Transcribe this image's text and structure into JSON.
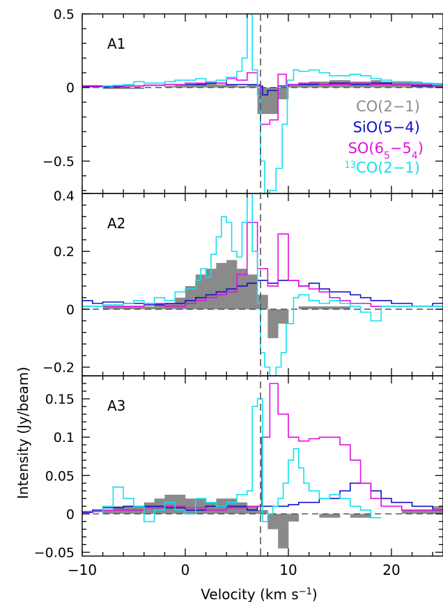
{
  "chart_data": {
    "type": "step",
    "xlabel": "Velocity (km s⁻¹)",
    "xlabel_parts": {
      "main": "Velocity (km s",
      "sup": "−1",
      "end": ")"
    },
    "ylabel": "Intensity (Jy/beam)",
    "xlim": [
      -10,
      25
    ],
    "x_ticks": [
      -10,
      0,
      10,
      20
    ],
    "x_tick_labels": [
      "−10",
      "0",
      "10",
      "20"
    ],
    "reference_velocity": 7.3,
    "colors": {
      "co": "#8a8a8a",
      "sio": "#1010c8",
      "so": "#e010e0",
      "c13o": "#10e0f0",
      "baseline": "#555555",
      "axes": "#000000"
    },
    "legend": {
      "placement": "right, top panel",
      "entries": [
        {
          "key": "co",
          "text": "CO(2−1)"
        },
        {
          "key": "sio",
          "text": "SiO(5−4)"
        },
        {
          "key": "so",
          "parts": [
            [
              "SO(6",
              0
            ],
            [
              "5",
              -1
            ],
            [
              "−5",
              0
            ],
            [
              "4",
              -1
            ],
            [
              ")",
              0
            ]
          ]
        },
        {
          "key": "c13o",
          "parts": [
            [
              "13",
              1
            ],
            [
              "CO(2−1)",
              0
            ]
          ]
        }
      ]
    },
    "panels": [
      {
        "name": "A1",
        "ylim": [
          -0.72,
          0.5
        ],
        "y_ticks": [
          0.5,
          0,
          -0.5
        ],
        "y_tick_labels": [
          "0.5",
          "0",
          "−0.5"
        ],
        "series": {
          "co": {
            "edges": [
              -8,
              -7,
              -6,
              -5,
              -4,
              -3,
              -2,
              -1,
              0,
              1,
              2,
              3,
              4,
              5,
              6,
              7,
              8,
              9,
              10,
              11,
              12,
              13,
              14,
              15,
              16,
              17,
              18,
              19,
              20,
              21,
              22,
              23,
              24,
              25
            ],
            "values": [
              -0.01,
              -0.01,
              -0.01,
              -0.01,
              0,
              0,
              0.01,
              0.02,
              0.02,
              0.03,
              0.03,
              0.02,
              0.02,
              0.01,
              0.02,
              -0.18,
              -0.18,
              -0.08,
              0.02,
              0.03,
              0.04,
              0.04,
              0.05,
              0.05,
              0.04,
              0.04,
              0.05,
              0.04,
              0.04,
              0.04,
              0.04,
              0.03,
              0.03
            ]
          },
          "sio": {
            "edges": [
              -10,
              -8,
              -6,
              -4,
              -2,
              0,
              2,
              4,
              6,
              7,
              7.5,
              8,
              9,
              10,
              12,
              14,
              16,
              18,
              20,
              22,
              25
            ],
            "values": [
              0.01,
              0.005,
              0.01,
              0.015,
              0.02,
              0.02,
              0.03,
              0.02,
              0.02,
              0.01,
              -0.05,
              -0.02,
              0.01,
              0.02,
              0.02,
              0.03,
              0.02,
              0.03,
              0.02,
              0.01
            ]
          },
          "so": {
            "edges": [
              -10,
              -8,
              -6,
              -4,
              -3,
              -2,
              -1,
              0,
              1,
              2,
              3,
              4,
              5,
              6,
              7,
              7.3,
              8.2,
              9,
              9.8,
              11,
              12,
              13,
              14,
              15,
              16,
              17,
              18,
              19,
              20,
              21,
              22,
              23,
              24,
              25
            ],
            "values": [
              0.005,
              0.01,
              0.01,
              0.015,
              0.015,
              0.02,
              0.02,
              0.03,
              0.03,
              0.04,
              0.03,
              0.06,
              0.05,
              0.1,
              0.02,
              -0.25,
              -0.22,
              0.09,
              0.02,
              0.03,
              0.03,
              0.02,
              0.02,
              0.02,
              0.03,
              0.03,
              0.02,
              0.02,
              0.02,
              0.02,
              0.02,
              0.02,
              0.01
            ]
          },
          "c13o": {
            "edges": [
              -8,
              -7,
              -6,
              -5,
              -4,
              -3,
              -2,
              -1,
              0,
              1,
              2,
              3,
              4,
              5,
              5.5,
              6,
              6.5,
              7,
              7.3,
              7.7,
              8.2,
              8.8,
              9.4,
              9.9,
              10.5,
              11,
              12,
              13,
              14,
              15,
              16,
              17,
              18,
              19,
              20,
              21,
              22,
              23,
              24,
              25
            ],
            "values": [
              0.01,
              0.015,
              0.02,
              0.04,
              0.03,
              0.03,
              0.04,
              0.05,
              0.05,
              0.06,
              0.04,
              0.05,
              0.07,
              0.11,
              0.2,
              0.5,
              0.12,
              -0.05,
              -0.5,
              -0.72,
              -0.7,
              -0.55,
              -0.25,
              0.05,
              0.12,
              0.11,
              0.12,
              0.1,
              0.08,
              0.08,
              0.09,
              0.08,
              0.06,
              0.05,
              0.04,
              0.04,
              0.03,
              0.03,
              0.02
            ]
          }
        }
      },
      {
        "name": "A2",
        "ylim": [
          -0.23,
          0.4
        ],
        "y_ticks": [
          0.4,
          0.2,
          0,
          -0.2
        ],
        "y_tick_labels": [
          "0.4",
          "0.2",
          "0",
          "−0.2"
        ],
        "series": {
          "co": {
            "edges": [
              -8,
              -7,
              -6,
              -5,
              -4,
              -3,
              -2,
              -1,
              0,
              1,
              2,
              3,
              4,
              5,
              6,
              7,
              8,
              9,
              10,
              11,
              12,
              13,
              14,
              15,
              16,
              17,
              18,
              19,
              20,
              21,
              22,
              23,
              24,
              25
            ],
            "values": [
              0.01,
              0.01,
              0.01,
              0.01,
              0.01,
              0.02,
              0.02,
              0.04,
              0.08,
              0.12,
              0.14,
              0.16,
              0.17,
              0.14,
              0.12,
              0.05,
              -0.1,
              -0.05,
              0,
              0.01,
              0.01,
              0.01,
              0.01,
              0.01,
              0,
              0,
              0,
              0,
              0,
              0,
              0,
              0,
              0
            ]
          },
          "sio": {
            "edges": [
              -10,
              -9,
              -8,
              -6,
              -4,
              -2,
              0,
              1,
              2,
              3,
              4,
              5,
              6,
              7,
              8,
              9,
              10,
              11,
              12,
              13,
              14,
              15,
              16,
              17,
              18,
              19,
              20,
              21,
              22,
              23,
              24,
              25
            ],
            "values": [
              0.03,
              0.02,
              0.025,
              0.02,
              0.015,
              0.02,
              0.03,
              0.04,
              0.05,
              0.06,
              0.07,
              0.08,
              0.09,
              0.1,
              0.09,
              0.1,
              0.1,
              0.08,
              0.09,
              0.07,
              0.06,
              0.06,
              0.05,
              0.04,
              0.03,
              0.03,
              0.02,
              0.02,
              0.01,
              0.01,
              0.02
            ]
          },
          "so": {
            "edges": [
              -10,
              -8,
              -6,
              -4,
              -2,
              0,
              1,
              2,
              3,
              4,
              5,
              6,
              7,
              8,
              9,
              10,
              11,
              12,
              13,
              14,
              15,
              16,
              17,
              18,
              19,
              20,
              21,
              22,
              23,
              24,
              25
            ],
            "values": [
              0.01,
              0.01,
              0.01,
              0.02,
              0.01,
              0.02,
              0.03,
              0.04,
              0.05,
              0.06,
              0.12,
              0.3,
              0.14,
              0.08,
              0.26,
              0.1,
              0.08,
              0.07,
              0.06,
              0.04,
              0.03,
              0.02,
              0.02,
              0.01,
              0.01,
              0.01,
              0.01,
              0.01,
              0.01,
              0.01
            ]
          },
          "c13o": {
            "edges": [
              -10,
              -8,
              -6,
              -5,
              -4,
              -3,
              -2,
              -1,
              0,
              1,
              1.5,
              2,
              2.5,
              3,
              3.5,
              4,
              4.5,
              5,
              5.5,
              6,
              6.5,
              7,
              7.3,
              7.7,
              8.2,
              8.8,
              9.3,
              9.8,
              10.5,
              11,
              12,
              13,
              14,
              15,
              16,
              17,
              18,
              19,
              20,
              22,
              25
            ],
            "values": [
              0.01,
              0.015,
              0.02,
              0.03,
              0.02,
              0.04,
              0.03,
              0.06,
              0.07,
              0.1,
              0.14,
              0.11,
              0.19,
              0.25,
              0.32,
              0.3,
              0.2,
              0.18,
              0.3,
              0.4,
              0.2,
              0.02,
              -0.15,
              -0.2,
              -0.23,
              -0.2,
              -0.15,
              -0.05,
              0.04,
              0.05,
              0.03,
              0.02,
              0.03,
              0.02,
              0.01,
              -0.01,
              -0.04,
              0.01,
              0.01,
              0.01
            ]
          }
        }
      },
      {
        "name": "A3",
        "ylim": [
          -0.055,
          0.18
        ],
        "y_ticks": [
          0.15,
          0.1,
          0.05,
          0,
          -0.05
        ],
        "y_tick_labels": [
          "0.15",
          "0.1",
          "0.05",
          "0",
          "−0.05"
        ],
        "series": {
          "co": {
            "edges": [
              -8,
              -7,
              -6,
              -5,
              -4,
              -3,
              -2,
              -1,
              0,
              1,
              2,
              3,
              4,
              5,
              6,
              7,
              8,
              9,
              10,
              11,
              12,
              13,
              14,
              15,
              16,
              17,
              18,
              19,
              20,
              21,
              22,
              23,
              24,
              25
            ],
            "values": [
              0.005,
              0.01,
              0.01,
              0.01,
              0.015,
              0.02,
              0.025,
              0.025,
              0.02,
              0.02,
              0.015,
              0.02,
              0.02,
              0.015,
              0.01,
              0.005,
              -0.02,
              -0.045,
              -0.01,
              0,
              0,
              -0.005,
              -0.005,
              0,
              -0.005,
              -0.005,
              0,
              0,
              0,
              0.005,
              0.005,
              0.005,
              0.01
            ]
          },
          "sio": {
            "edges": [
              -10,
              -9,
              -8,
              -6,
              -4,
              -2,
              0,
              2,
              4,
              6,
              7,
              8,
              9,
              10,
              11,
              12,
              13,
              14,
              15,
              16,
              17,
              18,
              19,
              20,
              21,
              22,
              23,
              24,
              25
            ],
            "values": [
              0.002,
              0.005,
              0.008,
              0.01,
              0.01,
              0.008,
              0.005,
              0.01,
              0.01,
              0.005,
              0.01,
              0.01,
              0.01,
              0.012,
              0.015,
              0.015,
              0.02,
              0.02,
              0.03,
              0.04,
              0.04,
              0.03,
              0.02,
              0.015,
              0.015,
              0.01,
              0.01,
              0.005
            ]
          },
          "so": {
            "edges": [
              -10,
              -8,
              -6,
              -4,
              -2,
              0,
              2,
              4,
              6,
              7,
              7.4,
              8.2,
              9,
              10,
              11,
              12,
              13,
              14,
              15,
              16,
              17,
              18,
              19,
              20,
              21,
              22,
              23,
              24,
              25
            ],
            "values": [
              0.003,
              0.005,
              0.005,
              0.008,
              0.01,
              0.008,
              0.005,
              0.008,
              0.01,
              0.01,
              0.1,
              0.17,
              0.13,
              0.1,
              0.095,
              0.098,
              0.1,
              0.1,
              0.09,
              0.07,
              0.04,
              0.02,
              0.01,
              0.01,
              0.005,
              0.005,
              0.005,
              0.005
            ]
          },
          "c13o": {
            "edges": [
              -8,
              -7,
              -6,
              -5,
              -4,
              -3,
              -2,
              -1,
              0,
              1,
              2,
              3,
              4,
              5,
              6,
              6.5,
              7,
              7.5,
              8,
              8.5,
              9,
              9.5,
              10,
              10.5,
              11,
              11.5,
              12,
              13,
              14,
              15,
              16,
              17,
              18,
              19
            ],
            "values": [
              0.01,
              0.035,
              0.02,
              0.01,
              -0.01,
              0.005,
              0.015,
              0.005,
              0,
              0.02,
              0.015,
              0.01,
              0.015,
              0.025,
              0.03,
              0.14,
              0.15,
              -0.01,
              0,
              0.01,
              0.02,
              0.04,
              0.07,
              0.085,
              0.06,
              0.04,
              0.03,
              0.02,
              0.025,
              0.02,
              0.01,
              0.005,
              -0.005
            ]
          }
        }
      }
    ]
  }
}
